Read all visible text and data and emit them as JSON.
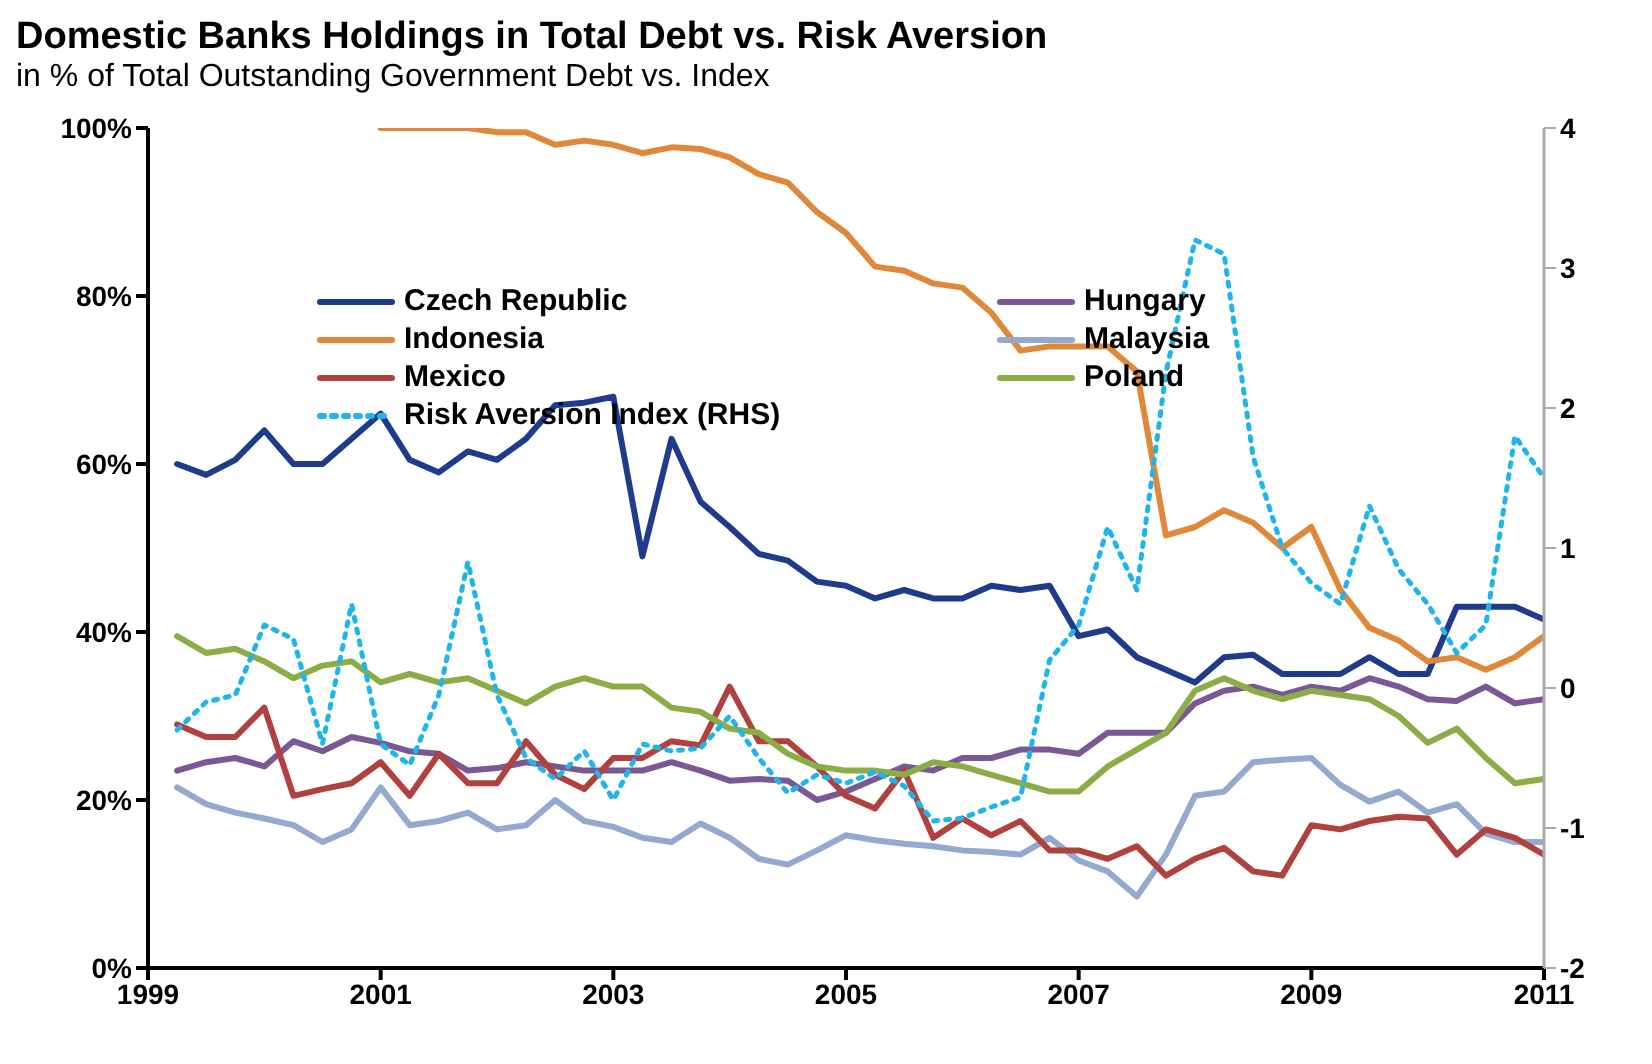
{
  "chart_data": {
    "type": "line",
    "title": "Domestic Banks Holdings in Total Debt vs. Risk Aversion",
    "subtitle": "in % of Total Outstanding Government Debt vs. Index",
    "x": [
      1999.25,
      1999.5,
      1999.75,
      2000,
      2000.25,
      2000.5,
      2000.75,
      2001,
      2001.25,
      2001.5,
      2001.75,
      2002,
      2002.25,
      2002.5,
      2002.75,
      2003,
      2003.25,
      2003.5,
      2003.75,
      2004,
      2004.25,
      2004.5,
      2004.75,
      2005,
      2005.25,
      2005.5,
      2005.75,
      2006,
      2006.25,
      2006.5,
      2006.75,
      2007,
      2007.25,
      2007.5,
      2007.75,
      2008,
      2008.25,
      2008.5,
      2008.75,
      2009,
      2009.25,
      2009.5,
      2009.75,
      2010,
      2010.25,
      2010.5,
      2010.75,
      2011
    ],
    "series": [
      {
        "name": "Czech Republic",
        "color": "#1f3b8c",
        "values": [
          60,
          58.7,
          60.5,
          64,
          60,
          60,
          63,
          66,
          60.5,
          59,
          61.5,
          60.5,
          63,
          67,
          67.3,
          68,
          49,
          63,
          55.5,
          52.5,
          49.3,
          48.5,
          46,
          45.5,
          44,
          45,
          44,
          44,
          45.5,
          45,
          45.5,
          39.5,
          40.3,
          37,
          35.5,
          34,
          37,
          37.3,
          35,
          35,
          35,
          37,
          35,
          35,
          43,
          43,
          43,
          41.5
        ]
      },
      {
        "name": "Hungary",
        "color": "#7a5895",
        "values": [
          23.5,
          24.5,
          25,
          24,
          27,
          25.8,
          27.5,
          26.8,
          25.8,
          25.5,
          23.5,
          23.8,
          24.5,
          24,
          23.5,
          23.5,
          23.5,
          24.5,
          23.5,
          22.3,
          22.5,
          22.3,
          20,
          21,
          22.5,
          24,
          23.5,
          25,
          25,
          26,
          26,
          25.5,
          28,
          28,
          28,
          31.5,
          33,
          33.5,
          32.5,
          33.5,
          33,
          34.5,
          33.5,
          32,
          31.8,
          33.5,
          31.5,
          32
        ]
      },
      {
        "name": "Indonesia",
        "color": "#e0883a",
        "x": [
          2001,
          2001.25,
          2001.5,
          2001.75,
          2002,
          2002.25,
          2002.5,
          2002.75,
          2003,
          2003.25,
          2003.5,
          2003.75,
          2004,
          2004.25,
          2004.5,
          2004.75,
          2005,
          2005.25,
          2005.5,
          2005.75,
          2006,
          2006.25,
          2006.5,
          2006.75,
          2007,
          2007.25,
          2007.5,
          2007.75,
          2008,
          2008.25,
          2008.5,
          2008.75,
          2009,
          2009.25,
          2009.5,
          2009.75,
          2010,
          2010.25,
          2010.5,
          2010.75,
          2011
        ],
        "values": [
          100,
          100,
          100,
          100,
          99.5,
          99.5,
          98,
          98.5,
          98,
          97,
          97.7,
          97.5,
          96.5,
          94.5,
          93.5,
          90,
          87.5,
          83.5,
          83,
          81.5,
          81,
          78,
          73.5,
          74,
          74,
          74,
          71,
          51.5,
          52.5,
          54.5,
          53,
          50,
          52.5,
          45,
          40.5,
          39,
          36.5,
          37,
          35.5,
          37,
          39.5
        ]
      },
      {
        "name": "Malaysia",
        "color": "#93a9d0",
        "values": [
          21.5,
          19.5,
          18.5,
          17.8,
          17,
          15,
          16.5,
          21.5,
          17,
          17.5,
          18.5,
          16.5,
          17,
          20,
          17.5,
          16.8,
          15.5,
          15,
          17.2,
          15.5,
          13,
          12.3,
          14,
          15.8,
          15.2,
          14.8,
          14.5,
          14,
          13.8,
          13.5,
          15.5,
          12.8,
          11.5,
          8.5,
          13.5,
          20.5,
          21,
          24.5,
          24.8,
          25,
          21.8,
          19.8,
          21,
          18.5,
          19.5,
          16,
          15,
          15
        ]
      },
      {
        "name": "Mexico",
        "color": "#b0413e",
        "values": [
          29,
          27.5,
          27.5,
          31,
          20.5,
          21.3,
          22,
          24.5,
          20.5,
          25.5,
          22,
          22,
          27,
          23,
          21.3,
          25,
          25,
          27,
          26.5,
          33.5,
          27,
          27,
          24,
          20.5,
          19,
          23.5,
          15.5,
          17.8,
          15.8,
          17.5,
          14,
          14,
          13,
          14.5,
          11,
          13,
          14.3,
          11.5,
          11,
          17,
          16.5,
          17.5,
          18,
          17.8,
          13.5,
          16.5,
          15.5,
          13.5
        ]
      },
      {
        "name": "Poland",
        "color": "#8bad45",
        "values": [
          39.5,
          37.5,
          38,
          36.5,
          34.5,
          36,
          36.5,
          34,
          35,
          34,
          34.5,
          33,
          31.5,
          33.5,
          34.5,
          33.5,
          33.5,
          31,
          30.5,
          28.5,
          28,
          25.5,
          24,
          23.5,
          23.5,
          23,
          24.5,
          24,
          23,
          22,
          21,
          21,
          24,
          26,
          28,
          33,
          34.5,
          33,
          32,
          33,
          32.5,
          32,
          30,
          26.8,
          28.5,
          25,
          22,
          22.5
        ]
      },
      {
        "name": "Risk Aversion Index (RHS)",
        "color": "#1fb4ea",
        "axis": "y2",
        "line_style": "dotted",
        "values": [
          -0.3,
          -0.1,
          -0.05,
          0.45,
          0.35,
          -0.4,
          0.6,
          -0.4,
          -0.55,
          -0.05,
          0.9,
          -0.05,
          -0.5,
          -0.65,
          -0.45,
          -0.8,
          -0.4,
          -0.45,
          -0.43,
          -0.2,
          -0.5,
          -0.75,
          -0.62,
          -0.68,
          -0.6,
          -0.7,
          -0.95,
          -0.93,
          -0.85,
          -0.78,
          0.2,
          0.45,
          1.15,
          0.7,
          2.25,
          3.2,
          3.1,
          1.65,
          1,
          0.75,
          0.6,
          1.3,
          0.85,
          0.6,
          0.25,
          0.45,
          1.8,
          1.5
        ]
      }
    ],
    "xlim": [
      1999,
      2011
    ],
    "xticks": [
      1999,
      2001,
      2003,
      2005,
      2007,
      2009,
      2011
    ],
    "ylim": [
      0,
      100
    ],
    "yticks": [
      {
        "value": 0,
        "label": "0%"
      },
      {
        "value": 20,
        "label": "20%"
      },
      {
        "value": 40,
        "label": "40%"
      },
      {
        "value": 60,
        "label": "60%"
      },
      {
        "value": 80,
        "label": "80%"
      },
      {
        "value": 100,
        "label": "100%"
      }
    ],
    "y2lim": [
      -2,
      4
    ],
    "y2ticks": [
      -2,
      -1,
      0,
      1,
      2,
      3,
      4
    ],
    "line_style": "solid",
    "marker": "none",
    "legend": "top"
  }
}
